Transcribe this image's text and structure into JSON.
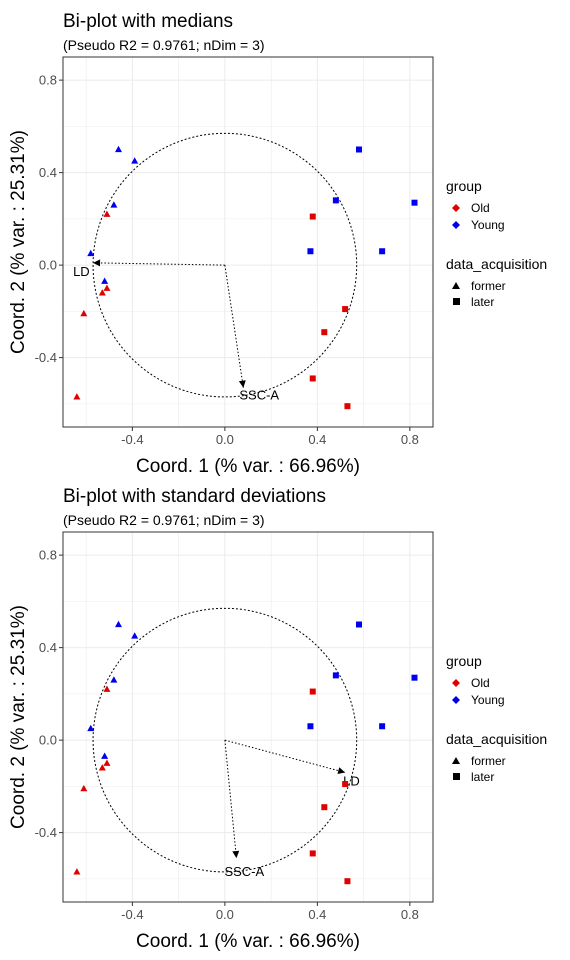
{
  "chart_data": [
    {
      "type": "scatter",
      "title": "Bi-plot with medians",
      "subtitle": "(Pseudo R2 = 0.9761; nDim = 3)",
      "xlabel": "Coord. 1 (% var. : 66.96%)",
      "ylabel": "Coord. 2 (% var. : 25.31%)",
      "xlim": [
        -0.7,
        0.9
      ],
      "ylim": [
        -0.7,
        0.9
      ],
      "x_ticks": [
        "-0.4",
        "0.0",
        "0.4",
        "0.8"
      ],
      "y_ticks": [
        "0.8",
        "0.4",
        "0.0",
        "-0.4"
      ],
      "grid": true,
      "legend_position": "right",
      "colors": {
        "Old": "#e00000",
        "Young": "#0000ee"
      },
      "legend": {
        "group_title": "group",
        "group_items": [
          "Old",
          "Young"
        ],
        "shape_title": "data_acquisition",
        "shape_items": [
          "former",
          "later"
        ]
      },
      "circle": {
        "cx": 0.0,
        "cy": 0.0,
        "r": 0.57
      },
      "arrows": [
        {
          "label": "LD",
          "x": -0.57,
          "y": 0.01
        },
        {
          "label": "SSC-A",
          "x": 0.08,
          "y": -0.53
        }
      ],
      "points": [
        {
          "x": -0.46,
          "y": 0.5,
          "group": "Young",
          "acq": "former"
        },
        {
          "x": -0.39,
          "y": 0.45,
          "group": "Young",
          "acq": "former"
        },
        {
          "x": -0.48,
          "y": 0.26,
          "group": "Young",
          "acq": "former"
        },
        {
          "x": -0.58,
          "y": 0.05,
          "group": "Young",
          "acq": "former"
        },
        {
          "x": -0.52,
          "y": -0.07,
          "group": "Young",
          "acq": "former"
        },
        {
          "x": -0.51,
          "y": 0.22,
          "group": "Old",
          "acq": "former"
        },
        {
          "x": -0.51,
          "y": -0.1,
          "group": "Old",
          "acq": "former"
        },
        {
          "x": -0.53,
          "y": -0.12,
          "group": "Old",
          "acq": "former"
        },
        {
          "x": -0.61,
          "y": -0.21,
          "group": "Old",
          "acq": "former"
        },
        {
          "x": -0.64,
          "y": -0.57,
          "group": "Old",
          "acq": "former"
        },
        {
          "x": 0.58,
          "y": 0.5,
          "group": "Young",
          "acq": "later"
        },
        {
          "x": 0.48,
          "y": 0.28,
          "group": "Young",
          "acq": "later"
        },
        {
          "x": 0.82,
          "y": 0.27,
          "group": "Young",
          "acq": "later"
        },
        {
          "x": 0.37,
          "y": 0.06,
          "group": "Young",
          "acq": "later"
        },
        {
          "x": 0.68,
          "y": 0.06,
          "group": "Young",
          "acq": "later"
        },
        {
          "x": 0.38,
          "y": 0.21,
          "group": "Old",
          "acq": "later"
        },
        {
          "x": 0.52,
          "y": -0.19,
          "group": "Old",
          "acq": "later"
        },
        {
          "x": 0.43,
          "y": -0.29,
          "group": "Old",
          "acq": "later"
        },
        {
          "x": 0.38,
          "y": -0.49,
          "group": "Old",
          "acq": "later"
        },
        {
          "x": 0.53,
          "y": -0.61,
          "group": "Old",
          "acq": "later"
        }
      ]
    },
    {
      "type": "scatter",
      "title": "Bi-plot with standard deviations",
      "subtitle": "(Pseudo R2 = 0.9761; nDim = 3)",
      "xlabel": "Coord. 1 (% var. : 66.96%)",
      "ylabel": "Coord. 2 (% var. : 25.31%)",
      "xlim": [
        -0.7,
        0.9
      ],
      "ylim": [
        -0.7,
        0.9
      ],
      "x_ticks": [
        "-0.4",
        "0.0",
        "0.4",
        "0.8"
      ],
      "y_ticks": [
        "0.8",
        "0.4",
        "0.0",
        "-0.4"
      ],
      "grid": true,
      "legend_position": "right",
      "colors": {
        "Old": "#e00000",
        "Young": "#0000ee"
      },
      "legend": {
        "group_title": "group",
        "group_items": [
          "Old",
          "Young"
        ],
        "shape_title": "data_acquisition",
        "shape_items": [
          "former",
          "later"
        ]
      },
      "circle": {
        "cx": 0.0,
        "cy": 0.0,
        "r": 0.57
      },
      "arrows": [
        {
          "label": "LD",
          "x": 0.52,
          "y": -0.14
        },
        {
          "label": "SSC-A",
          "x": 0.05,
          "y": -0.51
        }
      ],
      "points": [
        {
          "x": -0.46,
          "y": 0.5,
          "group": "Young",
          "acq": "former"
        },
        {
          "x": -0.39,
          "y": 0.45,
          "group": "Young",
          "acq": "former"
        },
        {
          "x": -0.48,
          "y": 0.26,
          "group": "Young",
          "acq": "former"
        },
        {
          "x": -0.58,
          "y": 0.05,
          "group": "Young",
          "acq": "former"
        },
        {
          "x": -0.52,
          "y": -0.07,
          "group": "Young",
          "acq": "former"
        },
        {
          "x": -0.51,
          "y": 0.22,
          "group": "Old",
          "acq": "former"
        },
        {
          "x": -0.51,
          "y": -0.1,
          "group": "Old",
          "acq": "former"
        },
        {
          "x": -0.53,
          "y": -0.12,
          "group": "Old",
          "acq": "former"
        },
        {
          "x": -0.61,
          "y": -0.21,
          "group": "Old",
          "acq": "former"
        },
        {
          "x": -0.64,
          "y": -0.57,
          "group": "Old",
          "acq": "former"
        },
        {
          "x": 0.58,
          "y": 0.5,
          "group": "Young",
          "acq": "later"
        },
        {
          "x": 0.48,
          "y": 0.28,
          "group": "Young",
          "acq": "later"
        },
        {
          "x": 0.82,
          "y": 0.27,
          "group": "Young",
          "acq": "later"
        },
        {
          "x": 0.37,
          "y": 0.06,
          "group": "Young",
          "acq": "later"
        },
        {
          "x": 0.68,
          "y": 0.06,
          "group": "Young",
          "acq": "later"
        },
        {
          "x": 0.38,
          "y": 0.21,
          "group": "Old",
          "acq": "later"
        },
        {
          "x": 0.52,
          "y": -0.19,
          "group": "Old",
          "acq": "later"
        },
        {
          "x": 0.43,
          "y": -0.29,
          "group": "Old",
          "acq": "later"
        },
        {
          "x": 0.38,
          "y": -0.49,
          "group": "Old",
          "acq": "later"
        },
        {
          "x": 0.53,
          "y": -0.61,
          "group": "Old",
          "acq": "later"
        }
      ]
    }
  ]
}
